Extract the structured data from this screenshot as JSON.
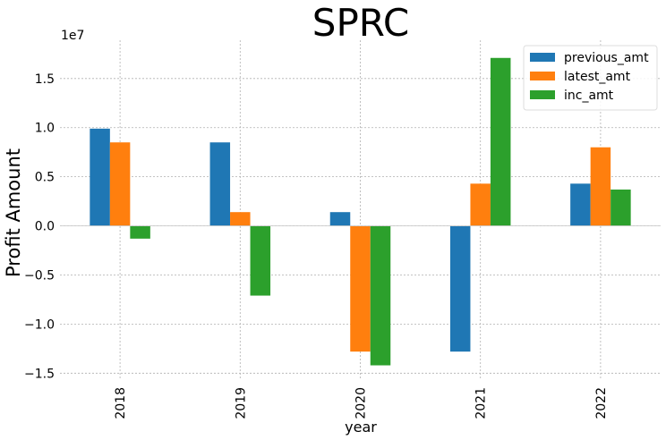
{
  "chart_data": {
    "type": "bar",
    "title": "SPRC",
    "xlabel": "year",
    "ylabel": "Profit Amount",
    "y_offset_label": "1e7",
    "categories": [
      "2018",
      "2019",
      "2020",
      "2021",
      "2022"
    ],
    "series": [
      {
        "name": "previous_amt",
        "color": "#1f77b4",
        "values": [
          9900000,
          8500000,
          1400000,
          -12800000,
          4300000
        ]
      },
      {
        "name": "latest_amt",
        "color": "#ff7f0e",
        "values": [
          8500000,
          1400000,
          -12800000,
          4300000,
          8000000
        ]
      },
      {
        "name": "inc_amt",
        "color": "#2ca02c",
        "values": [
          -1300000,
          -7100000,
          -14200000,
          17100000,
          3700000
        ]
      }
    ],
    "ylim": [
      -15700000,
      18900000
    ],
    "yticks": [
      -15000000,
      -10000000,
      -5000000,
      0,
      5000000,
      10000000,
      15000000
    ],
    "ytick_labels": [
      "−1.5",
      "−1.0",
      "−0.5",
      "0.0",
      "0.5",
      "1.0",
      "1.5"
    ],
    "grid": true,
    "legend_position": "top-right"
  }
}
